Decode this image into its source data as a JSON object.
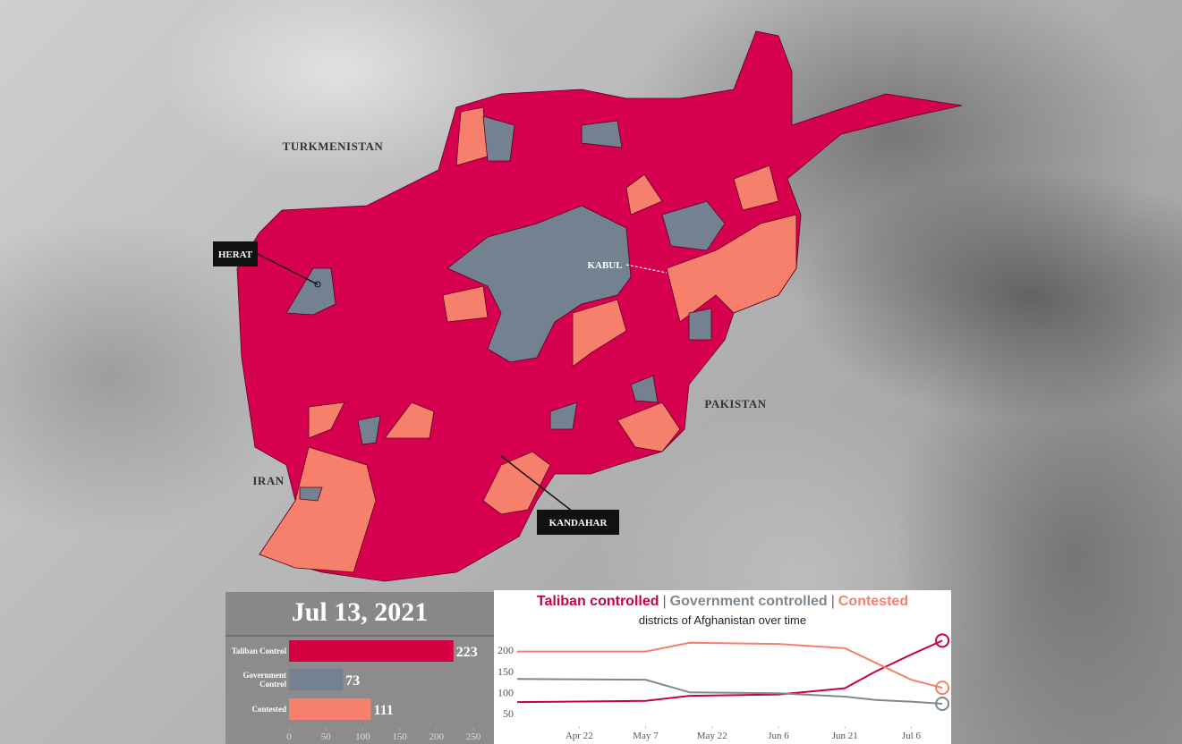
{
  "map": {
    "labels": {
      "turkmenistan": "TURKMENISTAN",
      "herat": "HERAT",
      "kabul": "KABUL",
      "pakistan": "PAKISTAN",
      "iran": "IRAN",
      "kandahar": "KANDAHAR"
    }
  },
  "chart_data": [
    {
      "type": "bar",
      "orientation": "horizontal",
      "title": "Jul 13, 2021",
      "categories": [
        "Taliban Control",
        "Government Control",
        "Contested"
      ],
      "values": [
        223,
        73,
        111
      ],
      "colors": [
        "#d4003f",
        "#738190",
        "#f7806c"
      ],
      "xlim": [
        0,
        270
      ],
      "xticks": [
        0,
        50,
        100,
        150,
        200,
        250
      ]
    },
    {
      "type": "line",
      "subtitle": "districts of Afghanistan over time",
      "legend_separator": "|",
      "x": [
        "Apr 8",
        "May 7",
        "May 17",
        "Jun 6",
        "Jun 21",
        "Jun 28",
        "Jul 6",
        "Jul 13"
      ],
      "series": [
        {
          "name": "Taliban controlled",
          "color": "#c8004a",
          "values": [
            77,
            80,
            92,
            95,
            110,
            150,
            190,
            223
          ]
        },
        {
          "name": "Government controlled",
          "color": "#7d8890",
          "values": [
            132,
            130,
            100,
            98,
            90,
            82,
            78,
            73
          ]
        },
        {
          "name": "Contested",
          "color": "#f7806c",
          "values": [
            197,
            197,
            218,
            215,
            205,
            170,
            130,
            111
          ]
        }
      ],
      "xlim": [
        "Apr 8",
        "Jul 15"
      ],
      "xticks": [
        "Apr 22",
        "May 7",
        "May 22",
        "Jun 6",
        "Jun 21",
        "Jul 6"
      ],
      "ylim": [
        20,
        228
      ],
      "yticks": [
        50,
        100,
        150,
        200
      ]
    }
  ]
}
